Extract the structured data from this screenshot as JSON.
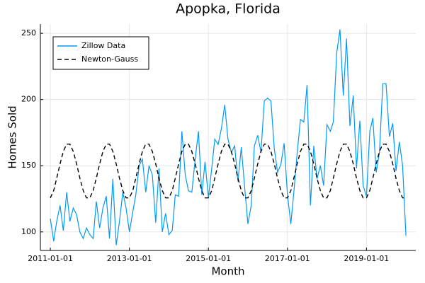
{
  "chart_data": {
    "type": "line",
    "title": "Apopka, Florida",
    "x_label": "Month",
    "y_label": "Homes Sold",
    "x": [
      "2011-01-01",
      "2011-02-01",
      "2011-03-01",
      "2011-04-01",
      "2011-05-01",
      "2011-06-01",
      "2011-07-01",
      "2011-08-01",
      "2011-09-01",
      "2011-10-01",
      "2011-11-01",
      "2011-12-01",
      "2012-01-01",
      "2012-02-01",
      "2012-03-01",
      "2012-04-01",
      "2012-05-01",
      "2012-06-01",
      "2012-07-01",
      "2012-08-01",
      "2012-09-01",
      "2012-10-01",
      "2012-11-01",
      "2012-12-01",
      "2013-01-01",
      "2013-02-01",
      "2013-03-01",
      "2013-04-01",
      "2013-05-01",
      "2013-06-01",
      "2013-07-01",
      "2013-08-01",
      "2013-09-01",
      "2013-10-01",
      "2013-11-01",
      "2013-12-01",
      "2014-01-01",
      "2014-02-01",
      "2014-03-01",
      "2014-04-01",
      "2014-05-01",
      "2014-06-01",
      "2014-07-01",
      "2014-08-01",
      "2014-09-01",
      "2014-10-01",
      "2014-11-01",
      "2014-12-01",
      "2015-01-01",
      "2015-02-01",
      "2015-03-01",
      "2015-04-01",
      "2015-05-01",
      "2015-06-01",
      "2015-07-01",
      "2015-08-01",
      "2015-09-01",
      "2015-10-01",
      "2015-11-01",
      "2015-12-01",
      "2016-01-01",
      "2016-02-01",
      "2016-03-01",
      "2016-04-01",
      "2016-05-01",
      "2016-06-01",
      "2016-07-01",
      "2016-08-01",
      "2016-09-01",
      "2016-10-01",
      "2016-11-01",
      "2016-12-01",
      "2017-01-01",
      "2017-02-01",
      "2017-03-01",
      "2017-04-01",
      "2017-05-01",
      "2017-06-01",
      "2017-07-01",
      "2017-08-01",
      "2017-09-01",
      "2017-10-01",
      "2017-11-01",
      "2017-12-01",
      "2018-01-01",
      "2018-02-01",
      "2018-03-01",
      "2018-04-01",
      "2018-05-01",
      "2018-06-01",
      "2018-07-01",
      "2018-08-01",
      "2018-09-01",
      "2018-10-01",
      "2018-11-01",
      "2018-12-01",
      "2019-01-01",
      "2019-02-01",
      "2019-03-01",
      "2019-04-01",
      "2019-05-01",
      "2019-06-01",
      "2019-07-01",
      "2019-08-01",
      "2019-09-01",
      "2019-10-01",
      "2019-11-01",
      "2019-12-01",
      "2020-01-01"
    ],
    "series": [
      {
        "name": "Zillow Data",
        "color": "#009af9",
        "dash": "solid",
        "values": [
          110,
          93,
          108,
          120,
          101,
          130,
          108,
          118,
          113,
          100,
          95,
          103,
          98,
          95,
          123,
          103,
          118,
          127,
          95,
          140,
          90,
          108,
          130,
          118,
          100,
          115,
          128,
          150,
          155,
          130,
          150,
          143,
          107,
          148,
          100,
          114,
          98,
          101,
          128,
          127,
          176,
          143,
          131,
          130,
          155,
          176,
          128,
          153,
          126,
          148,
          170,
          166,
          178,
          196,
          170,
          160,
          165,
          138,
          164,
          135,
          106,
          120,
          165,
          173,
          160,
          199,
          201,
          199,
          163,
          145,
          151,
          167,
          128,
          106,
          130,
          160,
          185,
          183,
          211,
          120,
          165,
          140,
          150,
          135,
          181,
          176,
          183,
          235,
          253,
          203,
          246,
          180,
          203,
          148,
          184,
          135,
          127,
          176,
          186,
          145,
          160,
          212,
          212,
          172,
          182,
          146,
          168,
          150,
          97
        ]
      },
      {
        "name": "Newton-Gauss",
        "color": "#000000",
        "dash": "dashed",
        "values": [
          125.7,
          131.2,
          140.6,
          151.4,
          160.8,
          166.3,
          166.3,
          160.8,
          151.4,
          140.6,
          131.2,
          125.7,
          125.7,
          131.2,
          140.6,
          151.4,
          160.8,
          166.3,
          166.3,
          160.8,
          151.4,
          140.6,
          131.2,
          125.7,
          125.7,
          131.2,
          140.6,
          151.4,
          160.8,
          166.3,
          166.3,
          160.8,
          151.4,
          140.6,
          131.2,
          125.7,
          125.7,
          131.2,
          140.6,
          151.4,
          160.8,
          166.3,
          166.3,
          160.8,
          151.4,
          140.6,
          131.2,
          125.7,
          125.7,
          131.2,
          140.6,
          151.4,
          160.8,
          166.3,
          166.3,
          160.8,
          151.4,
          140.6,
          131.2,
          125.7,
          125.7,
          131.2,
          140.6,
          151.4,
          160.8,
          166.3,
          166.3,
          160.8,
          151.4,
          140.6,
          131.2,
          125.7,
          125.7,
          131.2,
          140.6,
          151.4,
          160.8,
          166.3,
          166.3,
          160.8,
          151.4,
          140.6,
          131.2,
          125.7,
          125.7,
          131.2,
          140.6,
          151.4,
          160.8,
          166.3,
          166.3,
          160.8,
          151.4,
          140.6,
          131.2,
          125.7,
          125.7,
          131.2,
          140.6,
          151.4,
          160.8,
          166.3,
          166.3,
          160.8,
          151.4,
          140.6,
          131.2,
          125.7,
          125.7
        ]
      }
    ],
    "xlim": [
      "2010-10-01",
      "2020-04-01"
    ],
    "xticks": [
      "2011-01-01",
      "2013-01-01",
      "2015-01-01",
      "2017-01-01",
      "2019-01-01"
    ],
    "ylim": [
      86,
      257
    ],
    "yticks": [
      100,
      150,
      200,
      250
    ],
    "grid": true,
    "legend": "top-left"
  }
}
